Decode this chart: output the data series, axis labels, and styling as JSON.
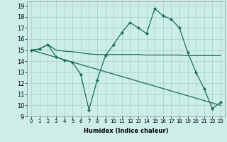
{
  "xlabel": "Humidex (Indice chaleur)",
  "bg_color": "#cdeee8",
  "grid_color": "#b0d8cc",
  "line_color": "#1a6b5a",
  "xlim": [
    -0.5,
    23.5
  ],
  "ylim": [
    9,
    19.4
  ],
  "xticks": [
    0,
    1,
    2,
    3,
    4,
    5,
    6,
    7,
    8,
    9,
    10,
    11,
    12,
    13,
    14,
    15,
    16,
    17,
    18,
    19,
    20,
    21,
    22,
    23
  ],
  "yticks": [
    9,
    10,
    11,
    12,
    13,
    14,
    15,
    16,
    17,
    18,
    19
  ],
  "curve1_x": [
    0,
    1,
    2,
    3,
    4,
    5,
    6,
    7,
    8,
    9,
    10,
    11,
    12,
    13,
    14,
    15,
    16,
    17,
    18,
    19,
    20,
    21,
    22,
    23
  ],
  "curve1_y": [
    15.0,
    15.1,
    15.5,
    14.4,
    14.1,
    13.9,
    12.8,
    9.6,
    12.3,
    14.5,
    15.5,
    16.6,
    17.5,
    17.0,
    16.5,
    18.75,
    18.1,
    17.8,
    17.0,
    14.8,
    13.0,
    11.5,
    9.7,
    10.3
  ],
  "curve2_x": [
    0,
    1,
    2,
    3,
    4,
    5,
    6,
    7,
    8,
    9,
    10,
    11,
    12,
    13,
    14,
    15,
    16,
    17,
    18,
    19,
    20,
    21,
    22,
    23
  ],
  "curve2_y": [
    15.0,
    15.1,
    15.5,
    15.0,
    14.9,
    14.85,
    14.75,
    14.65,
    14.6,
    14.6,
    14.6,
    14.6,
    14.6,
    14.6,
    14.55,
    14.55,
    14.55,
    14.55,
    14.55,
    14.5,
    14.5,
    14.5,
    14.5,
    14.5
  ],
  "curve3_x": [
    0,
    23
  ],
  "curve3_y": [
    15.0,
    10.0
  ]
}
